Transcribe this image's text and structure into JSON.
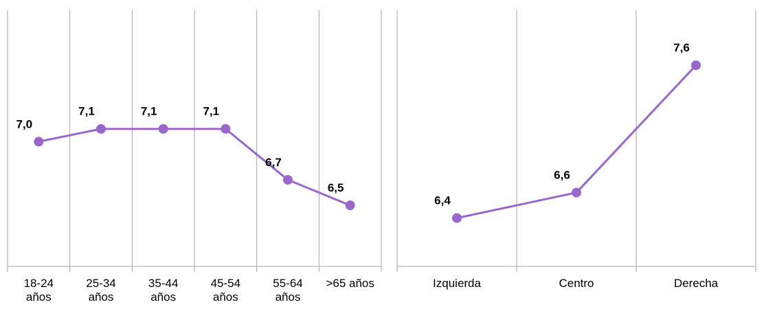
{
  "colors": {
    "line": "#9966CC",
    "marker": "#9966CC",
    "grid": "#A6A6A6",
    "axis": "#A6A6A6",
    "text": "#000000"
  },
  "chart_data": [
    {
      "type": "line",
      "title": "",
      "xlabel": "",
      "ylabel": "",
      "grid": "vertical",
      "legend": "none",
      "categories": [
        "18-24 años",
        "25-34 años",
        "35-44 años",
        "45-54 años",
        "55-64 años",
        ">65 años"
      ],
      "tick_label_lines": [
        [
          "18-24",
          "años"
        ],
        [
          "25-34",
          "años"
        ],
        [
          "35-44",
          "años"
        ],
        [
          "45-54",
          "años"
        ],
        [
          "55-64",
          "años"
        ],
        [
          ">65 años"
        ]
      ],
      "values": [
        7.0,
        7.1,
        7.1,
        7.1,
        6.7,
        6.5
      ],
      "data_labels": [
        "7,0",
        "7,1",
        "7,1",
        "7,1",
        "6,7",
        "6,5"
      ]
    },
    {
      "type": "line",
      "title": "",
      "xlabel": "",
      "ylabel": "",
      "grid": "vertical",
      "legend": "none",
      "categories": [
        "Izquierda",
        "Centro",
        "Derecha"
      ],
      "tick_label_lines": [
        [
          "Izquierda"
        ],
        [
          "Centro"
        ],
        [
          "Derecha"
        ]
      ],
      "values": [
        6.4,
        6.6,
        7.6
      ],
      "data_labels": [
        "6,4",
        "6,6",
        "7,6"
      ]
    }
  ]
}
